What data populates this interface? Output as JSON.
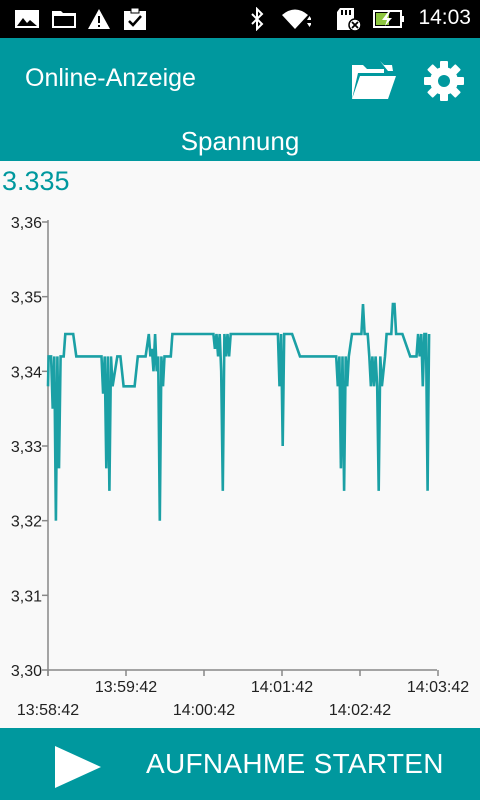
{
  "status_bar": {
    "time": "14:03",
    "icons_left": [
      "image-icon",
      "folder-icon",
      "warning-icon",
      "clipboard-check-icon"
    ],
    "icons_right": [
      "bluetooth-icon",
      "wifi-icon",
      "sd-card-icon",
      "battery-charging-icon"
    ]
  },
  "app_bar": {
    "title": "Online-Anzeige",
    "folder_icon": "folder-open-icon",
    "settings_icon": "gear-icon",
    "subtitle": "Spannung"
  },
  "current_value": "3.335",
  "colors": {
    "accent": "#00989e",
    "line": "#1ba0a5",
    "status_bar": "#000000",
    "background": "#f9f9f9"
  },
  "chart_data": {
    "type": "line",
    "ylim": [
      3.3,
      3.36
    ],
    "yticks": [
      "3,36",
      "3,35",
      "3,34",
      "3,33",
      "3,32",
      "3,31",
      "3,30"
    ],
    "xticks_top": [
      "13:59:42",
      "14:01:42",
      "14:03:42"
    ],
    "xticks_bottom": [
      "13:58:42",
      "14:00:42",
      "14:02:42"
    ],
    "series": [
      {
        "points": [
          [
            0,
            3.338
          ],
          [
            0.4,
            3.342
          ],
          [
            2,
            3.342
          ],
          [
            3,
            3.335
          ],
          [
            4,
            3.342
          ],
          [
            5,
            3.32
          ],
          [
            6,
            3.342
          ],
          [
            7,
            3.327
          ],
          [
            8,
            3.342
          ],
          [
            10,
            3.342
          ],
          [
            11,
            3.345
          ],
          [
            12,
            3.345
          ],
          [
            14,
            3.345
          ],
          [
            16,
            3.345
          ],
          [
            18,
            3.342
          ],
          [
            30,
            3.342
          ],
          [
            32,
            3.342
          ],
          [
            34,
            3.342
          ],
          [
            35,
            3.337
          ],
          [
            36,
            3.342
          ],
          [
            37,
            3.327
          ],
          [
            38,
            3.342
          ],
          [
            39,
            3.324
          ],
          [
            40,
            3.342
          ],
          [
            41,
            3.338
          ],
          [
            44,
            3.342
          ],
          [
            46,
            3.342
          ],
          [
            48,
            3.338
          ],
          [
            55,
            3.338
          ],
          [
            57,
            3.342
          ],
          [
            62,
            3.342
          ],
          [
            64,
            3.345
          ],
          [
            65,
            3.342
          ],
          [
            66,
            3.343
          ],
          [
            67,
            3.34
          ],
          [
            68,
            3.345
          ],
          [
            69,
            3.34
          ],
          [
            70,
            3.342
          ],
          [
            71,
            3.32
          ],
          [
            72,
            3.342
          ],
          [
            73,
            3.338
          ],
          [
            74,
            3.342
          ],
          [
            78,
            3.342
          ],
          [
            79,
            3.345
          ],
          [
            82,
            3.345
          ],
          [
            105,
            3.345
          ],
          [
            106,
            3.343
          ],
          [
            107,
            3.345
          ],
          [
            108,
            3.342
          ],
          [
            109,
            3.345
          ],
          [
            110,
            3.34
          ],
          [
            111,
            3.324
          ],
          [
            112,
            3.345
          ],
          [
            113,
            3.342
          ],
          [
            114,
            3.345
          ],
          [
            115,
            3.342
          ],
          [
            116,
            3.345
          ],
          [
            140,
            3.345
          ],
          [
            146,
            3.345
          ],
          [
            147,
            3.338
          ],
          [
            148,
            3.345
          ],
          [
            149,
            3.33
          ],
          [
            150,
            3.345
          ],
          [
            155,
            3.345
          ],
          [
            160,
            3.342
          ],
          [
            180,
            3.342
          ],
          [
            183,
            3.342
          ],
          [
            184,
            3.338
          ],
          [
            185,
            3.342
          ],
          [
            186,
            3.327
          ],
          [
            187,
            3.342
          ],
          [
            188,
            3.324
          ],
          [
            189,
            3.342
          ],
          [
            190,
            3.338
          ],
          [
            191,
            3.342
          ],
          [
            193,
            3.345
          ],
          [
            195,
            3.345
          ],
          [
            199,
            3.345
          ],
          [
            200,
            3.349
          ],
          [
            201,
            3.345
          ],
          [
            203,
            3.345
          ],
          [
            204,
            3.342
          ],
          [
            205,
            3.338
          ],
          [
            206,
            3.342
          ],
          [
            207,
            3.338
          ],
          [
            208,
            3.342
          ],
          [
            209,
            3.338
          ],
          [
            210,
            3.324
          ],
          [
            211,
            3.342
          ],
          [
            212,
            3.338
          ],
          [
            214,
            3.342
          ],
          [
            215,
            3.345
          ],
          [
            218,
            3.345
          ],
          [
            219,
            3.349
          ],
          [
            220,
            3.349
          ],
          [
            221,
            3.345
          ],
          [
            224,
            3.345
          ],
          [
            225,
            3.345
          ],
          [
            230,
            3.342
          ],
          [
            234,
            3.342
          ],
          [
            235,
            3.345
          ],
          [
            236,
            3.342
          ],
          [
            237,
            3.345
          ],
          [
            238,
            3.338
          ],
          [
            239,
            3.345
          ],
          [
            240,
            3.345
          ],
          [
            241,
            3.324
          ],
          [
            241.5,
            3.335
          ],
          [
            242,
            3.345
          ]
        ]
      }
    ]
  },
  "bottom_bar": {
    "play_icon": "play-icon",
    "button_label": "AUFNAHME STARTEN"
  }
}
